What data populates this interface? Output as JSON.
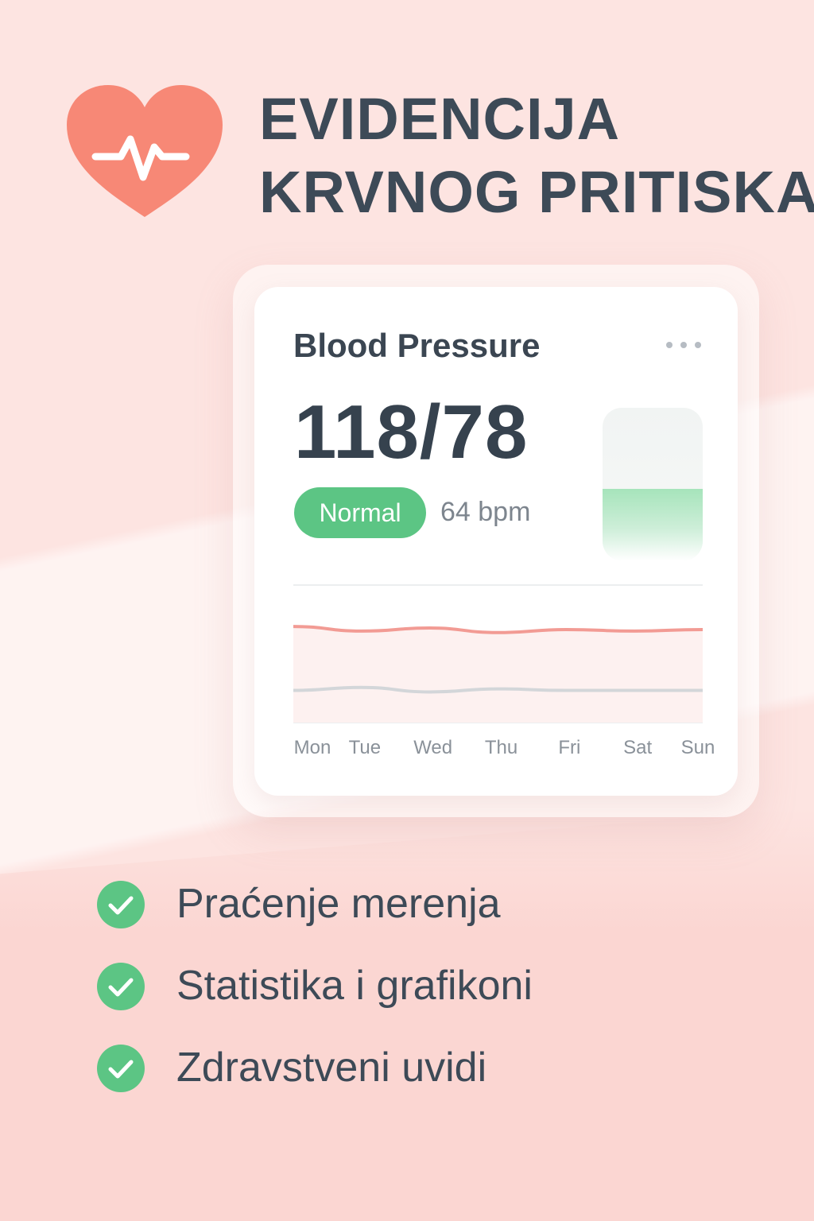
{
  "title": {
    "line1": "EVIDENCIJA",
    "line2": "KRVNOG PRITISKA"
  },
  "colors": {
    "heart": "#f78876",
    "accent_green": "#5cc584",
    "systolic": "#f29b94",
    "diastolic": "#d3d6d9",
    "text": "#3d4a57"
  },
  "icons": {
    "heart": "heart-pulse-icon",
    "more": "more-dots-icon",
    "check": "check-icon"
  },
  "card": {
    "title": "Blood Pressure",
    "reading": "118/78",
    "status": "Normal",
    "heart_rate": "64 bpm",
    "level_fraction": 0.47
  },
  "chart_data": {
    "type": "line",
    "categories": [
      "Mon",
      "Tue",
      "Wed",
      "Thu",
      "Fri",
      "Sat",
      "Sun"
    ],
    "series": [
      {
        "values": [
          120,
          117,
          119,
          116,
          118,
          117,
          118
        ]
      },
      {
        "values": [
          78,
          80,
          77,
          79,
          78,
          78,
          78
        ]
      }
    ]
  },
  "features": [
    {
      "label": "Praćenje merenja"
    },
    {
      "label": "Statistika i grafikoni"
    },
    {
      "label": "Zdravstveni uvidi"
    }
  ]
}
